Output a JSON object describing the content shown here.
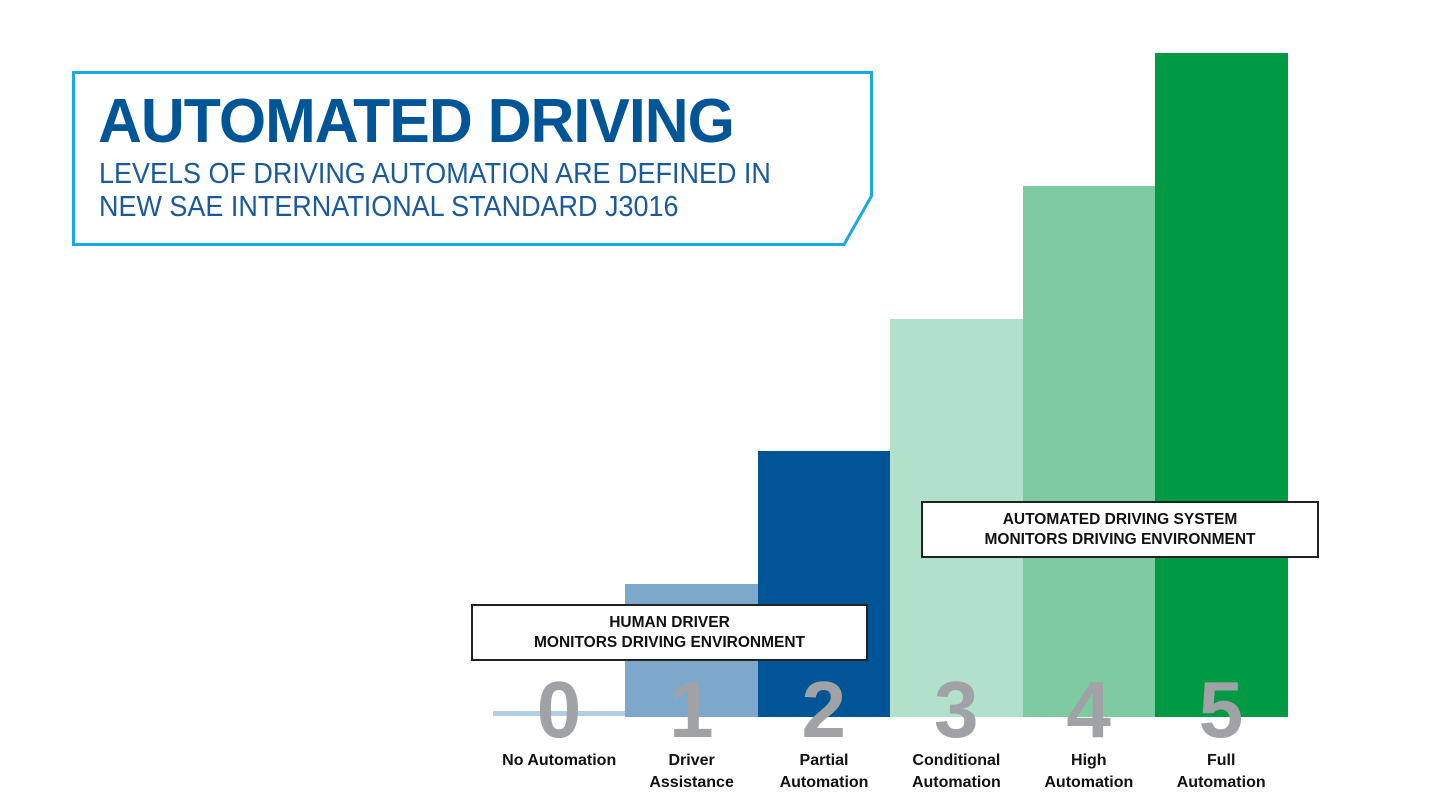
{
  "chart_data": {
    "type": "bar",
    "title": "AUTOMATED DRIVING",
    "subtitle": [
      "LEVELS OF DRIVING AUTOMATION ARE DEFINED IN",
      "NEW SAE INTERNATIONAL STANDARD J3016"
    ],
    "categories": [
      "0",
      "1",
      "2",
      "3",
      "4",
      "5"
    ],
    "category_labels": [
      [
        "No Automation",
        ""
      ],
      [
        "Driver",
        "Assistance"
      ],
      [
        "Partial",
        "Automation"
      ],
      [
        "Conditional",
        "Automation"
      ],
      [
        "High",
        "Automation"
      ],
      [
        "Full",
        "Automation"
      ]
    ],
    "values": [
      0,
      1,
      2,
      3,
      4,
      5
    ],
    "colors": [
      "#b3cde3",
      "#7ea8cb",
      "#005596",
      "#b1e0cb",
      "#7ecba2",
      "#009a44"
    ],
    "ylim": [
      0,
      5
    ],
    "grid": false,
    "annotations": [
      {
        "lines": [
          "HUMAN DRIVER",
          "MONITORS DRIVING ENVIRONMENT"
        ],
        "spans_levels": [
          0,
          2
        ]
      },
      {
        "lines": [
          "AUTOMATED DRIVING SYSTEM",
          "MONITORS DRIVING ENVIRONMENT"
        ],
        "spans_levels": [
          3,
          5
        ]
      }
    ]
  },
  "accent_colors": {
    "frame": "#1aa9e6",
    "title": "#005596",
    "level_number": "#a0a2a5"
  }
}
